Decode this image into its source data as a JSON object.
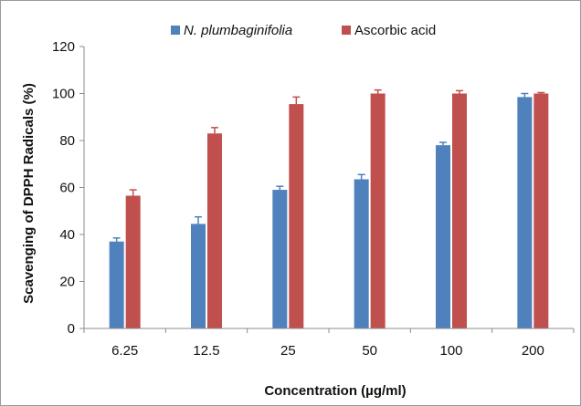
{
  "chart_data": {
    "type": "bar",
    "categories": [
      "6.25",
      "12.5",
      "25",
      "50",
      "100",
      "200"
    ],
    "series": [
      {
        "name": "N. plumbaginifolia",
        "values": [
          37,
          44.5,
          59,
          63.5,
          78,
          98.5
        ],
        "errors": [
          1.5,
          3,
          1.5,
          2,
          1.2,
          1.5
        ],
        "color": "#4f81bd"
      },
      {
        "name": "Ascorbic acid",
        "values": [
          56.5,
          83,
          95.5,
          100,
          100,
          100
        ],
        "errors": [
          2.5,
          2.5,
          3,
          1.5,
          1.2,
          0.4
        ],
        "color": "#c0504d"
      }
    ],
    "xlabel": "Concentration (µg/ml)",
    "ylabel": "Scavenging of DPPH Radicals (%)",
    "ylim": [
      0,
      120
    ],
    "yticks": [
      "0",
      "20",
      "40",
      "60",
      "80",
      "100",
      "120"
    ],
    "grid": false,
    "legend_position": "top"
  }
}
